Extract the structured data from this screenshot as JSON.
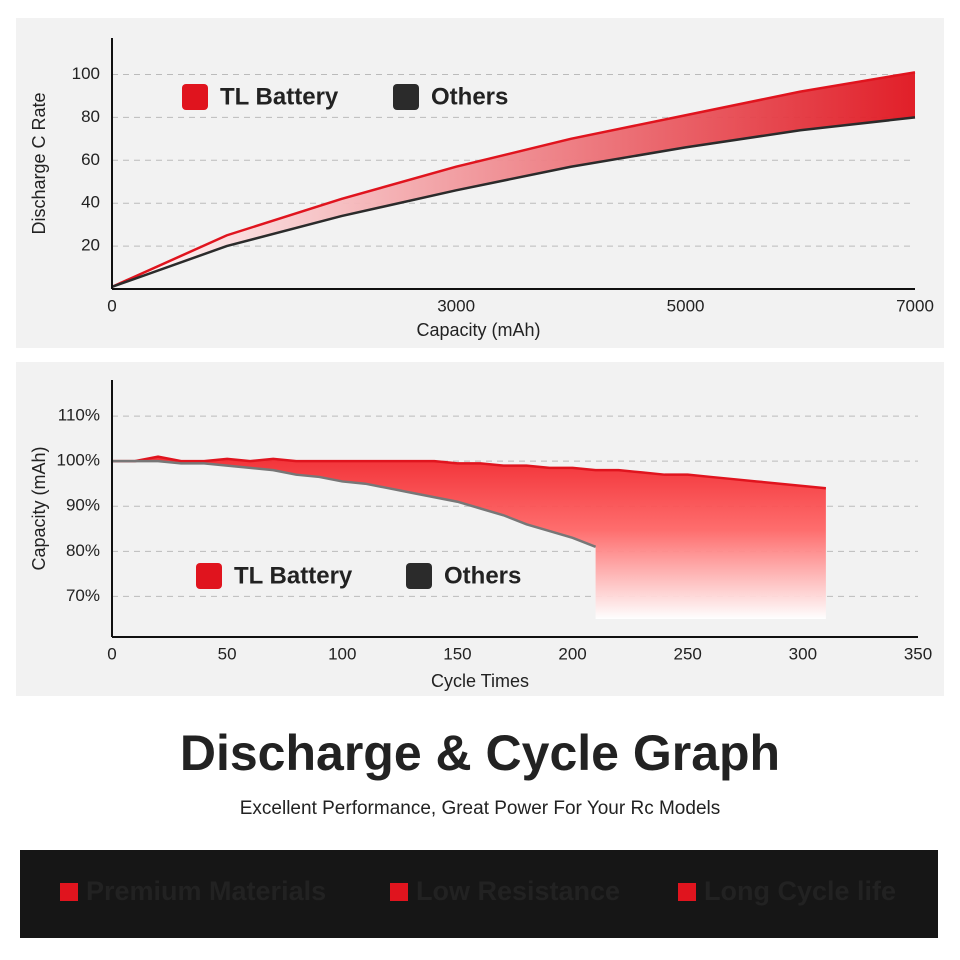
{
  "chart_data": [
    {
      "type": "line",
      "x_label": "Capacity (mAh)",
      "y_label": "Discharge C Rate",
      "x": [
        0,
        1000,
        2000,
        3000,
        4000,
        5000,
        6000,
        7000
      ],
      "series": [
        {
          "name": "TL Battery",
          "color": "#e0141e",
          "values": [
            1,
            25,
            42,
            57,
            70,
            81,
            92,
            101
          ]
        },
        {
          "name": "Others",
          "color": "#2b2b2b",
          "values": [
            1,
            20,
            34,
            46,
            57,
            66,
            74,
            80
          ]
        }
      ],
      "xlim": [
        0,
        7000
      ],
      "xticks": [
        0,
        3000,
        5000,
        7000
      ],
      "ylim": [
        0,
        117
      ],
      "yticks": [
        20,
        40,
        60,
        80,
        100
      ],
      "grid": true
    },
    {
      "type": "line",
      "x_label": "Cycle Times",
      "y_label": "Capacity (mAh)",
      "x": [
        0,
        10,
        20,
        30,
        40,
        50,
        60,
        70,
        80,
        90,
        100,
        110,
        120,
        130,
        140,
        150,
        160,
        170,
        180,
        190,
        200,
        210,
        220,
        230,
        240,
        250,
        260,
        270,
        280,
        290,
        300,
        310
      ],
      "series": [
        {
          "name": "TL Battery",
          "color": "#e0141e",
          "values": [
            100,
            100,
            101,
            100,
            100,
            100.5,
            100,
            100.5,
            100,
            100,
            100,
            100,
            100,
            100,
            100,
            99.5,
            99.5,
            99,
            99,
            98.5,
            98.5,
            98,
            98,
            97.5,
            97,
            97,
            96.5,
            96,
            95.5,
            95,
            94.5,
            94
          ]
        },
        {
          "name": "Others",
          "color": "#777777",
          "values": [
            100,
            100,
            100,
            99.5,
            99.5,
            99,
            98.5,
            98,
            97,
            96.5,
            95.5,
            95,
            94,
            93,
            92,
            91,
            89.5,
            88,
            86,
            84.5,
            83,
            81,
            null,
            null,
            null,
            null,
            null,
            null,
            null,
            null,
            null,
            null
          ]
        }
      ],
      "xlim": [
        0,
        350
      ],
      "xticks": [
        0,
        50,
        100,
        150,
        200,
        250,
        300,
        350
      ],
      "ylim": [
        61,
        118
      ],
      "yticks": [
        {
          "value": 70,
          "label": "70%"
        },
        {
          "value": 80,
          "label": "80%"
        },
        {
          "value": 90,
          "label": "90%"
        },
        {
          "value": 100,
          "label": "100%"
        },
        {
          "value": 110,
          "label": "110%"
        }
      ],
      "grid": true
    }
  ],
  "title": "Discharge & Cycle Graph",
  "subtitle": "Excellent Performance, Great Power For Your Rc Models",
  "features": [
    "Premium Materials",
    "Low Resistance",
    "Long Cycle life"
  ]
}
